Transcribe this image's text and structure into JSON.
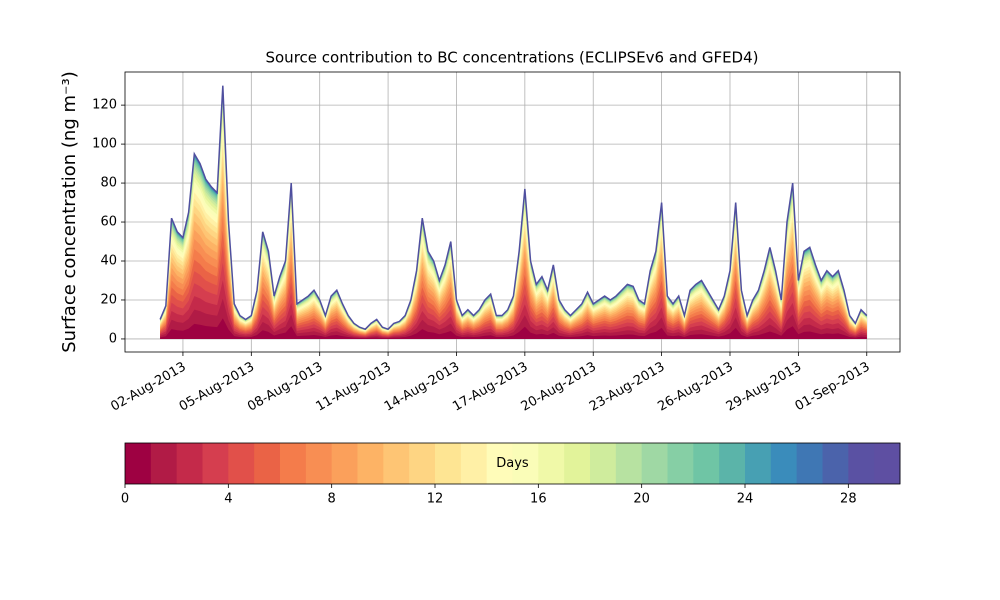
{
  "chart_data": {
    "type": "stacked-area",
    "title": "Source contribution to BC concentrations (ECLIPSEv6 and GFED4)",
    "y_label": "Surface concentration (ng m⁻³)",
    "x": [
      "2013-08-01T00:00",
      "2013-08-01T06:00",
      "2013-08-01T12:00",
      "2013-08-01T18:00",
      "2013-08-02T00:00",
      "2013-08-02T06:00",
      "2013-08-02T12:00",
      "2013-08-02T18:00",
      "2013-08-03T00:00",
      "2013-08-03T06:00",
      "2013-08-03T12:00",
      "2013-08-03T18:00",
      "2013-08-04T00:00",
      "2013-08-04T06:00",
      "2013-08-04T12:00",
      "2013-08-04T18:00",
      "2013-08-05T00:00",
      "2013-08-05T06:00",
      "2013-08-05T12:00",
      "2013-08-05T18:00",
      "2013-08-06T00:00",
      "2013-08-06T06:00",
      "2013-08-06T12:00",
      "2013-08-06T18:00",
      "2013-08-07T00:00",
      "2013-08-07T06:00",
      "2013-08-07T12:00",
      "2013-08-07T18:00",
      "2013-08-08T00:00",
      "2013-08-08T06:00",
      "2013-08-08T12:00",
      "2013-08-08T18:00",
      "2013-08-09T00:00",
      "2013-08-09T06:00",
      "2013-08-09T12:00",
      "2013-08-09T18:00",
      "2013-08-10T00:00",
      "2013-08-10T06:00",
      "2013-08-10T12:00",
      "2013-08-10T18:00",
      "2013-08-11T00:00",
      "2013-08-11T06:00",
      "2013-08-11T12:00",
      "2013-08-11T18:00",
      "2013-08-12T00:00",
      "2013-08-12T06:00",
      "2013-08-12T12:00",
      "2013-08-12T18:00",
      "2013-08-13T00:00",
      "2013-08-13T06:00",
      "2013-08-13T12:00",
      "2013-08-13T18:00",
      "2013-08-14T00:00",
      "2013-08-14T06:00",
      "2013-08-14T12:00",
      "2013-08-14T18:00",
      "2013-08-15T00:00",
      "2013-08-15T06:00",
      "2013-08-15T12:00",
      "2013-08-15T18:00",
      "2013-08-16T00:00",
      "2013-08-16T06:00",
      "2013-08-16T12:00",
      "2013-08-16T18:00",
      "2013-08-17T00:00",
      "2013-08-17T06:00",
      "2013-08-17T12:00",
      "2013-08-17T18:00",
      "2013-08-18T00:00",
      "2013-08-18T06:00",
      "2013-08-18T12:00",
      "2013-08-18T18:00",
      "2013-08-19T00:00",
      "2013-08-19T06:00",
      "2013-08-19T12:00",
      "2013-08-19T18:00",
      "2013-08-20T00:00",
      "2013-08-20T06:00",
      "2013-08-20T12:00",
      "2013-08-20T18:00",
      "2013-08-21T00:00",
      "2013-08-21T06:00",
      "2013-08-21T12:00",
      "2013-08-21T18:00",
      "2013-08-22T00:00",
      "2013-08-22T06:00",
      "2013-08-22T12:00",
      "2013-08-22T18:00",
      "2013-08-23T00:00",
      "2013-08-23T06:00",
      "2013-08-23T12:00",
      "2013-08-23T18:00",
      "2013-08-24T00:00",
      "2013-08-24T06:00",
      "2013-08-24T12:00",
      "2013-08-24T18:00",
      "2013-08-25T00:00",
      "2013-08-25T06:00",
      "2013-08-25T12:00",
      "2013-08-25T18:00",
      "2013-08-26T00:00",
      "2013-08-26T06:00",
      "2013-08-26T12:00",
      "2013-08-26T18:00",
      "2013-08-27T00:00",
      "2013-08-27T06:00",
      "2013-08-27T12:00",
      "2013-08-27T18:00",
      "2013-08-28T00:00",
      "2013-08-28T06:00",
      "2013-08-28T12:00",
      "2013-08-28T18:00",
      "2013-08-29T00:00",
      "2013-08-29T06:00",
      "2013-08-29T12:00",
      "2013-08-29T18:00",
      "2013-08-30T00:00",
      "2013-08-30T06:00",
      "2013-08-30T12:00",
      "2013-08-30T18:00",
      "2013-08-31T00:00",
      "2013-08-31T06:00",
      "2013-08-31T12:00",
      "2013-08-31T18:00",
      "2013-09-01T00:00"
    ],
    "values": [
      10,
      17,
      62,
      55,
      52,
      65,
      95,
      90,
      82,
      78,
      75,
      130,
      60,
      18,
      12,
      10,
      12,
      25,
      55,
      45,
      22,
      32,
      40,
      80,
      18,
      20,
      22,
      25,
      20,
      12,
      22,
      25,
      18,
      12,
      8,
      6,
      5,
      8,
      10,
      6,
      5,
      8,
      9,
      12,
      20,
      35,
      62,
      45,
      40,
      30,
      38,
      50,
      20,
      12,
      15,
      12,
      15,
      20,
      23,
      12,
      12,
      15,
      22,
      45,
      77,
      40,
      28,
      32,
      25,
      38,
      20,
      15,
      12,
      15,
      18,
      24,
      18,
      20,
      22,
      20,
      22,
      25,
      28,
      27,
      20,
      18,
      35,
      45,
      70,
      22,
      18,
      22,
      12,
      25,
      28,
      30,
      25,
      20,
      15,
      22,
      35,
      70,
      25,
      12,
      20,
      25,
      35,
      47,
      35,
      20,
      60,
      80,
      30,
      45,
      47,
      38,
      30,
      35,
      32,
      35,
      25,
      12,
      8,
      15,
      12
    ],
    "line_color": "#4f4f9f",
    "xlim": [
      "2013-07-30T11:00",
      "2013-09-02T11:00"
    ],
    "xticks": [
      {
        "value": "2013-08-02T00:00",
        "label": "02-Aug-2013"
      },
      {
        "value": "2013-08-05T00:00",
        "label": "05-Aug-2013"
      },
      {
        "value": "2013-08-08T00:00",
        "label": "08-Aug-2013"
      },
      {
        "value": "2013-08-11T00:00",
        "label": "11-Aug-2013"
      },
      {
        "value": "2013-08-14T00:00",
        "label": "14-Aug-2013"
      },
      {
        "value": "2013-08-17T00:00",
        "label": "17-Aug-2013"
      },
      {
        "value": "2013-08-20T00:00",
        "label": "20-Aug-2013"
      },
      {
        "value": "2013-08-23T00:00",
        "label": "23-Aug-2013"
      },
      {
        "value": "2013-08-26T00:00",
        "label": "26-Aug-2013"
      },
      {
        "value": "2013-08-29T00:00",
        "label": "29-Aug-2013"
      },
      {
        "value": "2013-09-01T00:00",
        "label": "01-Sep-2013"
      }
    ],
    "ylim": [
      -6.7,
      137
    ],
    "yticks": [
      0,
      20,
      40,
      60,
      80,
      100,
      120
    ],
    "grid": true,
    "colorbar": {
      "label": "Days",
      "lim": [
        0,
        30
      ],
      "ticks": [
        0,
        4,
        8,
        12,
        16,
        20,
        24,
        28
      ],
      "colors": [
        "#9e0142",
        "#b11b46",
        "#c42a4a",
        "#d53e4f",
        "#e1504a",
        "#ea6346",
        "#f47c4b",
        "#f88e53",
        "#fba05b",
        "#fdb365",
        "#fec574",
        "#fed583",
        "#fee593",
        "#fff0a6",
        "#fffcb9",
        "#fafdb8",
        "#f0f9a8",
        "#e2f39a",
        "#cfec9d",
        "#b7e2a1",
        "#9fd8a4",
        "#86cfa5",
        "#6fc5a5",
        "#5bb4a9",
        "#47a0b3",
        "#3a8cbb",
        "#3f77b4",
        "#4b63ab",
        "#5a51a3",
        "#5e4fa2"
      ]
    }
  }
}
